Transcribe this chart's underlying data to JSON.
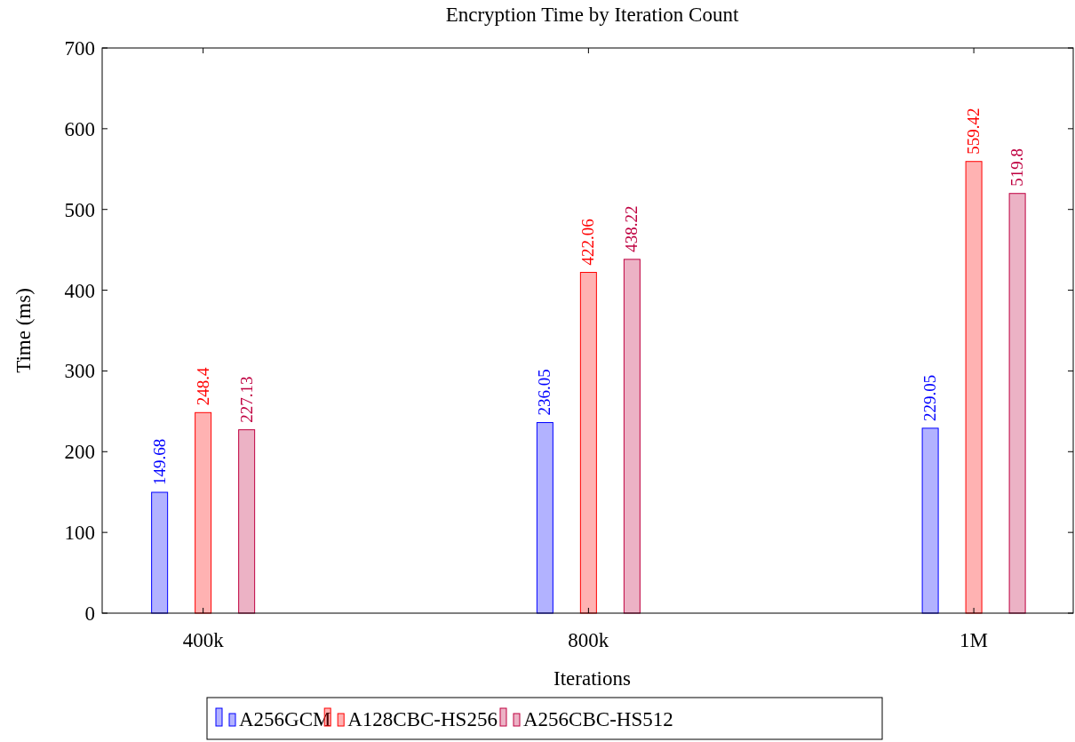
{
  "chart_data": {
    "type": "bar",
    "title": "Encryption Time by Iteration Count",
    "xlabel": "Iterations",
    "ylabel": "Time (ms)",
    "categories": [
      "400k",
      "800k",
      "1M"
    ],
    "series": [
      {
        "name": "A256GCM",
        "color": "#0000ff",
        "values": [
          149.68,
          236.05,
          229.05
        ]
      },
      {
        "name": "A128CBC-HS256",
        "color": "#ff0000",
        "values": [
          248.4,
          422.06,
          559.42
        ]
      },
      {
        "name": "A256CBC-HS512",
        "color": "#bf0040",
        "values": [
          227.13,
          438.22,
          519.8
        ]
      }
    ],
    "ylim": [
      0,
      700
    ],
    "yticks": [
      0,
      100,
      200,
      300,
      400,
      500,
      600,
      700
    ],
    "data_labels": true,
    "legend": "bottom",
    "grid": false
  }
}
